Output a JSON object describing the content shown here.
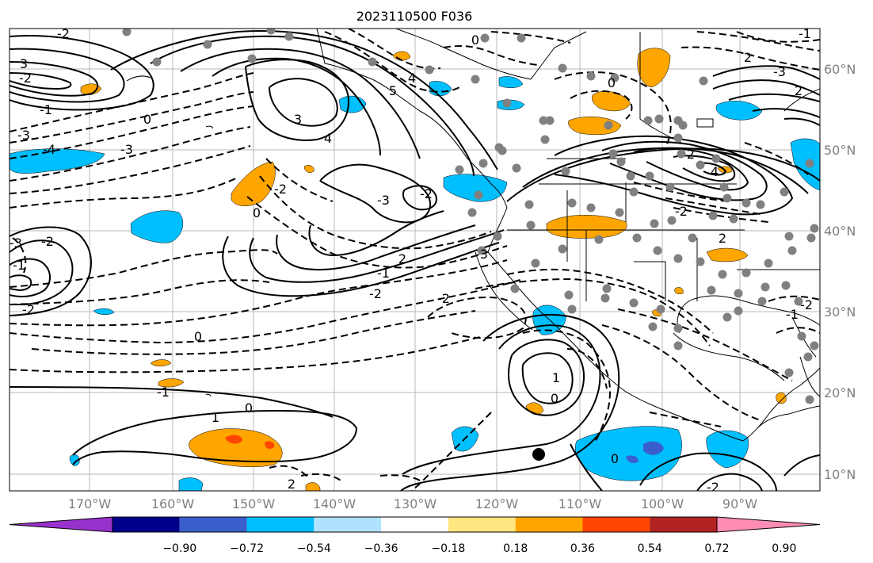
{
  "title": "2023110500 F036",
  "lon_labels": [
    "170°W",
    "160°W",
    "150°W",
    "140°W",
    "130°W",
    "120°W",
    "110°W",
    "100°W",
    "90°W"
  ],
  "lat_labels": [
    "60°N",
    "50°N",
    "40°N",
    "30°N",
    "20°N",
    "10°N"
  ],
  "contour_labels": [
    "-2",
    "0",
    "-1",
    "2",
    "0",
    "4",
    "5",
    "3",
    "-2",
    "-1",
    "-3",
    "-4",
    "-3",
    "0",
    "3",
    "4",
    "-3",
    "-2",
    "-2",
    "0",
    "-3",
    "-2",
    "-1",
    "-2",
    "0",
    "-1",
    "0",
    "1",
    "2",
    "-2",
    "-1",
    "-2",
    "2",
    "-3",
    "4",
    "2",
    "-2",
    "2",
    "2",
    "-3",
    "-2",
    "-1",
    "0",
    "1",
    "0",
    "-2"
  ],
  "colorbar": {
    "colors": [
      "#9932cc",
      "#00008b",
      "#3a5fcd",
      "#00bfff",
      "#b0e2ff",
      "#ffffff",
      "#ffe680",
      "#ffa500",
      "#ff4500",
      "#b22222",
      "#ff8cb4"
    ],
    "tick_labels": [
      "−0.90",
      "−0.72",
      "−0.54",
      "−0.36",
      "−0.18",
      "0.18",
      "0.36",
      "0.54",
      "0.72",
      "0.90"
    ]
  },
  "marker_color": "#808080"
}
